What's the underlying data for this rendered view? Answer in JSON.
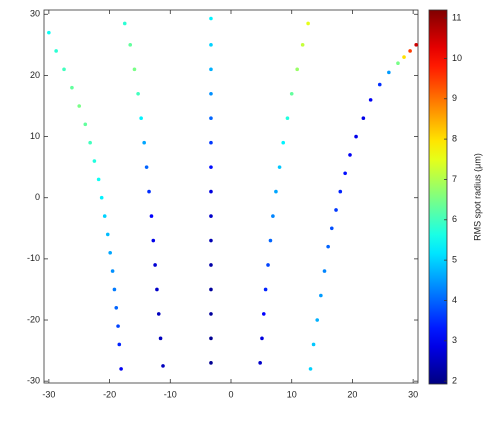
{
  "chart_data": {
    "type": "scatter",
    "colormap": "jet",
    "xlim": [
      -30.8,
      30.8
    ],
    "ylim": [
      -30.3,
      30.7
    ],
    "xticks": [
      -30,
      -20,
      -10,
      0,
      10,
      20,
      30
    ],
    "yticks": [
      -30,
      -20,
      -10,
      0,
      10,
      20,
      30
    ],
    "colorbar": {
      "label": "RMS spot radius (μm)",
      "clim": [
        1.93,
        11.2
      ],
      "ticks": [
        2,
        3,
        4,
        5,
        6,
        7,
        8,
        9,
        10,
        11
      ]
    },
    "series": [
      {
        "x": [
          -30,
          -28.8,
          -27.5,
          -26.2,
          -25,
          -24,
          -23.2,
          -22.5,
          -21.8,
          -21.3,
          -20.8,
          -20.3,
          -19.9,
          -19.5,
          -19.2,
          -18.9,
          -18.6,
          -18.4,
          -18.1
        ],
        "y": [
          27,
          24,
          21,
          18,
          15,
          12,
          9,
          6,
          3,
          0,
          -3,
          -6,
          -9,
          -12,
          -15,
          -18,
          -21,
          -24,
          -28
        ],
        "c": [
          5.5,
          5.8,
          6,
          6.3,
          6.5,
          6.3,
          6,
          5.7,
          5.5,
          5.3,
          5,
          4.8,
          4.6,
          4.4,
          4.2,
          4,
          3.7,
          3.4,
          3
        ]
      },
      {
        "x": [
          -17.5,
          -16.6,
          -15.9,
          -15.3,
          -14.8,
          -14.3,
          -13.9,
          -13.5,
          -13.1,
          -12.8,
          -12.5,
          -12.2,
          -11.9,
          -11.6,
          -11.2
        ],
        "y": [
          28.5,
          25,
          21,
          17,
          13,
          9,
          5,
          1,
          -3,
          -7,
          -11,
          -15,
          -19,
          -23,
          -27.5
        ],
        "c": [
          5.8,
          6.3,
          6.5,
          6,
          5.3,
          4.6,
          4,
          3.5,
          3.1,
          2.9,
          2.7,
          2.6,
          2.5,
          2.5,
          2.5
        ]
      },
      {
        "x": [
          -3.3,
          -3.3,
          -3.3,
          -3.3,
          -3.3,
          -3.3,
          -3.3,
          -3.3,
          -3.3,
          -3.3,
          -3.3,
          -3.3,
          -3.3,
          -3.3,
          -3.3
        ],
        "y": [
          29.3,
          25,
          21,
          17,
          13,
          9,
          5,
          1,
          -3,
          -7,
          -11,
          -15,
          -19,
          -23,
          -27
        ],
        "c": [
          5.3,
          5,
          4.7,
          4.4,
          4,
          3.6,
          3.2,
          2.8,
          2.6,
          2.4,
          2.3,
          2.2,
          2.2,
          2.1,
          2.1
        ]
      },
      {
        "x": [
          12.7,
          11.8,
          10.9,
          10,
          9.3,
          8.6,
          8,
          7.4,
          6.9,
          6.5,
          6.1,
          5.7,
          5.4,
          5.1,
          4.8
        ],
        "y": [
          28.5,
          25,
          21,
          17,
          13,
          9,
          5,
          1,
          -3,
          -7,
          -11,
          -15,
          -19,
          -23,
          -27
        ],
        "c": [
          7.5,
          7.2,
          6.8,
          6.3,
          5.7,
          5.3,
          4.9,
          4.6,
          4.3,
          4,
          3.7,
          3.4,
          3.1,
          2.8,
          2.6
        ]
      },
      {
        "x": [
          30.5,
          29.5,
          28.5,
          27.5,
          26,
          24.5,
          23,
          21.8,
          20.6,
          19.6,
          18.8,
          18,
          17.3,
          16.6,
          16,
          15.4,
          14.8,
          14.2,
          13.6,
          13.1
        ],
        "y": [
          25,
          24,
          23,
          22,
          20.5,
          18.5,
          16,
          13,
          10,
          7,
          4,
          1,
          -2,
          -5,
          -8,
          -12,
          -16,
          -20,
          -24,
          -28
        ],
        "c": [
          10.5,
          9.5,
          8,
          6.5,
          4.5,
          3.5,
          3,
          2.9,
          2.9,
          3,
          3.2,
          3.4,
          3.6,
          3.8,
          4,
          4.3,
          4.5,
          4.7,
          4.9,
          5
        ]
      }
    ]
  }
}
